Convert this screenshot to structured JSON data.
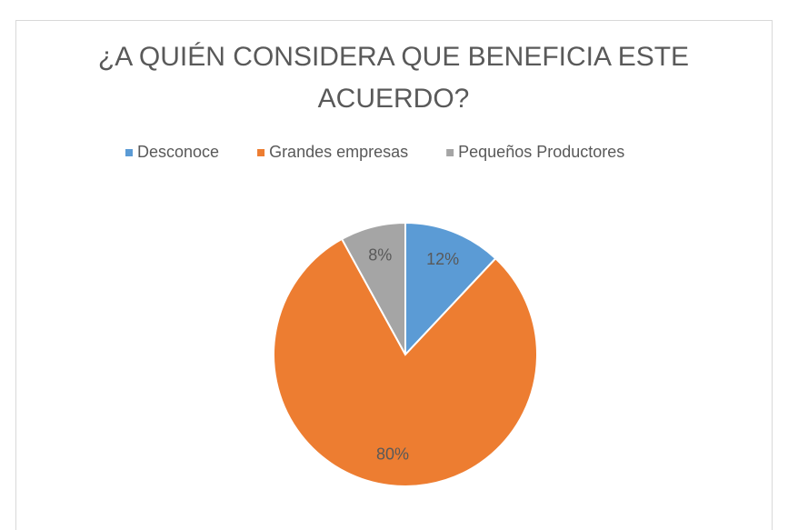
{
  "chart_data": {
    "type": "pie",
    "title": "¿A QUIÉN CONSIDERA QUE BENEFICIA ESTE ACUERDO?",
    "categories": [
      "Desconoce",
      "Grandes empresas",
      "Pequeños Productores"
    ],
    "values": [
      12,
      80,
      8
    ],
    "value_labels": [
      "12%",
      "80%",
      "8%"
    ],
    "colors": [
      "#5b9bd5",
      "#ed7d31",
      "#a5a5a5"
    ],
    "legend": "top"
  }
}
